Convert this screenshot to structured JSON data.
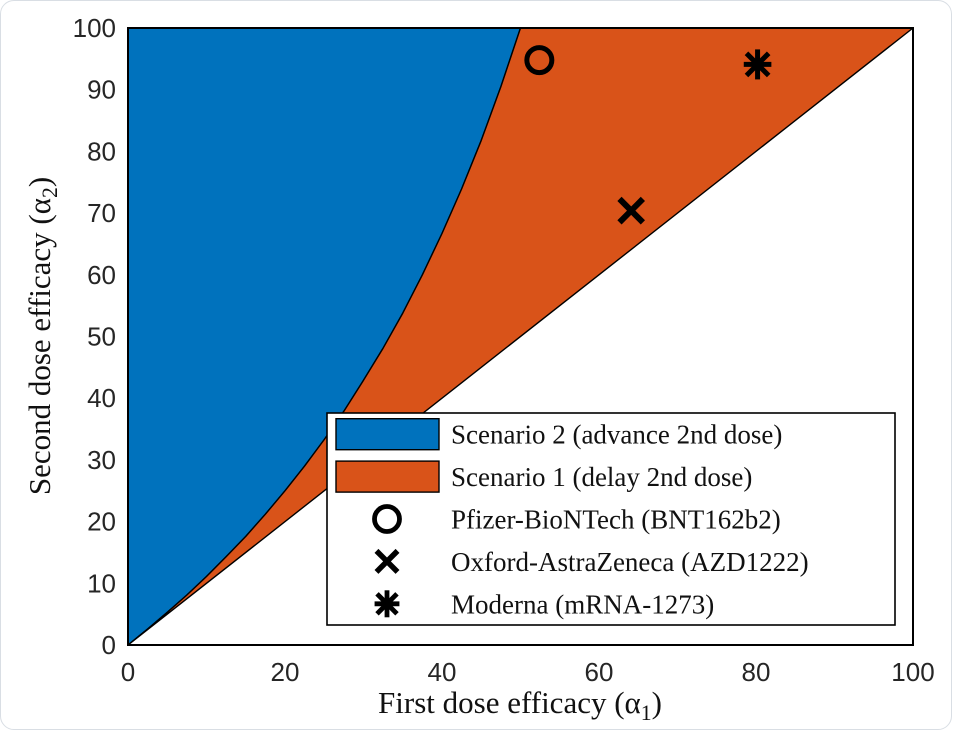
{
  "chart_data": {
    "type": "area",
    "xlabel": {
      "prefix": "First dose efficacy (α",
      "sub": "1",
      "suffix": ")"
    },
    "ylabel": {
      "prefix": "Second dose efficacy (α",
      "sub": "2",
      "suffix": ")"
    },
    "xlim": [
      0,
      100
    ],
    "ylim": [
      0,
      100
    ],
    "x_ticks": [
      0,
      20,
      40,
      60,
      80,
      100
    ],
    "y_ticks": [
      0,
      10,
      20,
      30,
      40,
      50,
      60,
      70,
      80,
      90,
      100
    ],
    "grid": false,
    "frame_color": "#000000",
    "tick_label_color": "#262626",
    "regions": [
      {
        "name": "Scenario 2 (advance 2nd dose)",
        "color": "#0072BD",
        "boundary_curve": "alpha2 = 100*alpha1/(100-alpha1), 0 <= alpha1 <= 50",
        "polygon": [
          [
            0,
            0
          ],
          [
            2.5,
            2.6
          ],
          [
            5,
            5.3
          ],
          [
            7.5,
            8.1
          ],
          [
            10,
            11.1
          ],
          [
            12.5,
            14.3
          ],
          [
            15,
            17.6
          ],
          [
            17.5,
            21.2
          ],
          [
            20,
            25.0
          ],
          [
            22.5,
            29.0
          ],
          [
            25,
            33.3
          ],
          [
            27.5,
            37.9
          ],
          [
            30,
            42.9
          ],
          [
            32.5,
            48.1
          ],
          [
            35,
            53.8
          ],
          [
            37.5,
            60.0
          ],
          [
            40,
            66.7
          ],
          [
            42.5,
            73.9
          ],
          [
            45,
            81.8
          ],
          [
            47.5,
            90.5
          ],
          [
            50,
            100
          ],
          [
            0,
            100
          ]
        ]
      },
      {
        "name": "Scenario 1 (delay 2nd dose)",
        "color": "#D95319",
        "boundary_curve": "between alpha2 = 100*alpha1/(100-alpha1) and alpha2 = alpha1",
        "polygon": [
          [
            0,
            0
          ],
          [
            2.5,
            2.6
          ],
          [
            5,
            5.3
          ],
          [
            7.5,
            8.1
          ],
          [
            10,
            11.1
          ],
          [
            12.5,
            14.3
          ],
          [
            15,
            17.6
          ],
          [
            17.5,
            21.2
          ],
          [
            20,
            25.0
          ],
          [
            22.5,
            29.0
          ],
          [
            25,
            33.3
          ],
          [
            27.5,
            37.9
          ],
          [
            30,
            42.9
          ],
          [
            32.5,
            48.1
          ],
          [
            35,
            53.8
          ],
          [
            37.5,
            60.0
          ],
          [
            40,
            66.7
          ],
          [
            42.5,
            73.9
          ],
          [
            45,
            81.8
          ],
          [
            47.5,
            90.5
          ],
          [
            50,
            100
          ],
          [
            100,
            100
          ]
        ]
      }
    ],
    "markers": [
      {
        "name": "Pfizer-BioNTech (BNT162b2)",
        "shape": "circle",
        "x": 52.4,
        "y": 94.8,
        "color": "#000000"
      },
      {
        "name": "Oxford-AstraZeneca (AZD1222)",
        "shape": "cross",
        "x": 64.1,
        "y": 70.4,
        "color": "#000000"
      },
      {
        "name": "Moderna (mRNA-1273)",
        "shape": "asterisk",
        "x": 80.2,
        "y": 94.1,
        "color": "#000000"
      }
    ],
    "legend": {
      "position": "inside lower-right",
      "entries": [
        {
          "label": "Scenario 2 (advance 2nd dose)",
          "swatch": "fill",
          "color": "#0072BD"
        },
        {
          "label": "Scenario 1 (delay 2nd dose)",
          "swatch": "fill",
          "color": "#D95319"
        },
        {
          "label": "Pfizer-BioNTech (BNT162b2)",
          "swatch": "marker",
          "marker": "circle",
          "color": "#000000"
        },
        {
          "label": "Oxford-AstraZeneca (AZD1222)",
          "swatch": "marker",
          "marker": "cross",
          "color": "#000000"
        },
        {
          "label": "Moderna (mRNA-1273)",
          "swatch": "marker",
          "marker": "asterisk",
          "color": "#000000"
        }
      ]
    }
  }
}
